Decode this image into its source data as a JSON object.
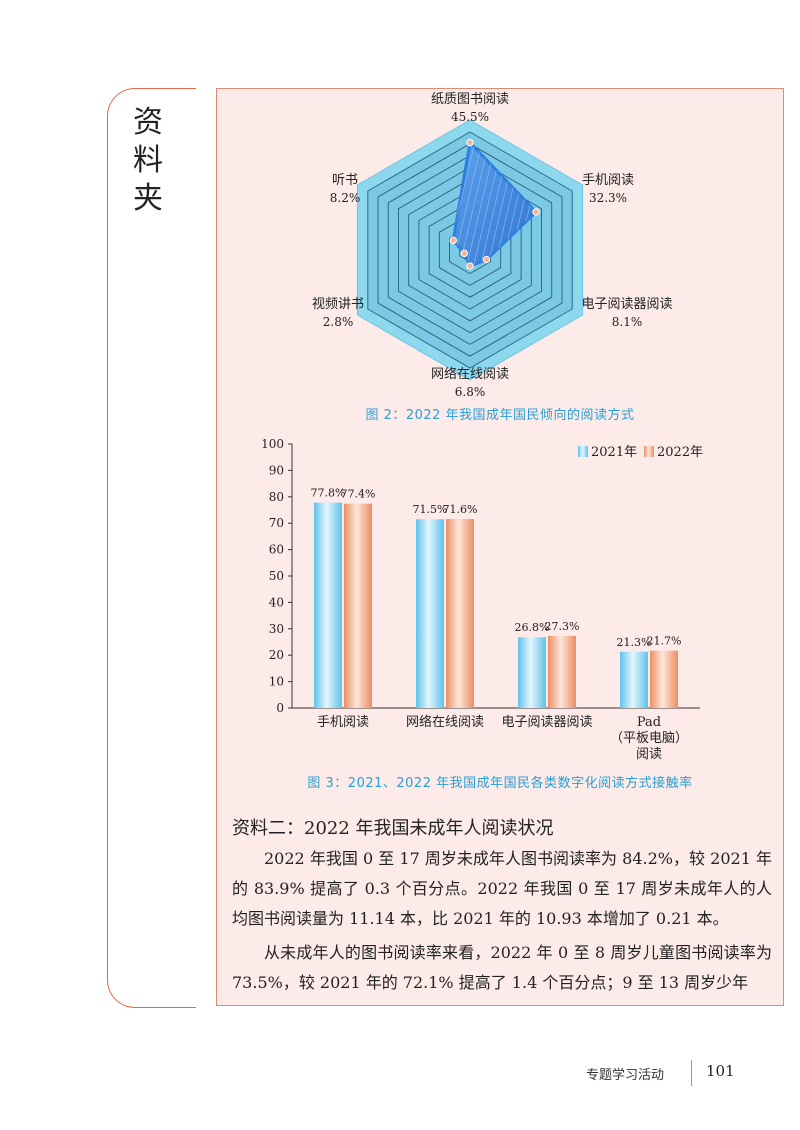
{
  "sidebar": {
    "title": "资\n料\n夹"
  },
  "chart_data": [
    {
      "type": "radar",
      "categories": [
        "纸质图书阅读",
        "手机阅读",
        "电子阅读器阅读",
        "网络在线阅读",
        "视频讲书",
        "听书"
      ],
      "values": [
        45.5,
        32.3,
        8.1,
        6.8,
        2.8,
        8.2
      ],
      "value_labels": [
        "45.5%",
        "32.3%",
        "8.1%",
        "6.8%",
        "2.8%",
        "8.2%"
      ],
      "range": [
        0,
        50
      ],
      "caption": "图 2：2022 年我国成年国民倾向的阅读方式",
      "colors": {
        "line": "#2f7fe0",
        "fill": "#4a8fe6",
        "ring": "#8ed8ee",
        "ring_inner": "#7cc9e6"
      }
    },
    {
      "type": "bar",
      "categories": [
        "手机阅读",
        "网络在线阅读",
        "电子阅读器阅读",
        "Pad\n（平板电脑）\n阅读"
      ],
      "series": [
        {
          "name": "2021年",
          "values": [
            77.8,
            71.5,
            26.8,
            21.3
          ],
          "labels": [
            "77.8%",
            "71.5%",
            "26.8%",
            "21.3%"
          ],
          "color": "#7ccdf0"
        },
        {
          "name": "2022年",
          "values": [
            77.4,
            71.6,
            27.3,
            21.7
          ],
          "labels": [
            "77.4%",
            "71.6%",
            "27.3%",
            "21.7%"
          ],
          "color": "#f0a07a"
        }
      ],
      "ylim": [
        0,
        100
      ],
      "yticks": [
        "0",
        "10",
        "20",
        "30",
        "40",
        "50",
        "60",
        "70",
        "80",
        "90",
        "100"
      ],
      "legend_position": "top-right",
      "caption": "图 3：2021、2022 年我国成年国民各类数字化阅读方式接触率"
    }
  ],
  "section": {
    "heading": "资料二：2022 年我国未成年人阅读状况",
    "paragraphs": [
      "2022 年我国 0 至 17 周岁未成年人图书阅读率为 84.2%，较 2021 年的 83.9% 提高了 0.3 个百分点。2022 年我国 0 至 17 周岁未成年人的人均图书阅读量为 11.14 本，比 2021 年的 10.93 本增加了 0.21 本。",
      "从未成年人的图书阅读率来看，2022 年 0 至 8 周岁儿童图书阅读率为 73.5%，较 2021 年的 72.1% 提高了 1.4 个百分点；9 至 13 周岁少年"
    ]
  },
  "footer": {
    "label": "专题学习活动",
    "page_number": "101"
  }
}
